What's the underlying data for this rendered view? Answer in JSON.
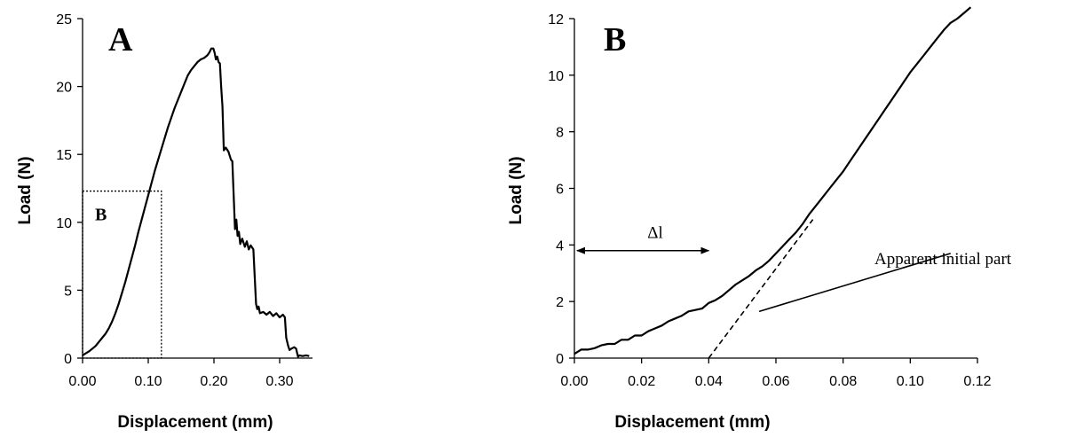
{
  "chart_data": [
    {
      "type": "line",
      "panel_label": "A",
      "xlabel": "Displacement (mm)",
      "ylabel": "Load (N)",
      "xlim": [
        0,
        0.35
      ],
      "ylim": [
        0,
        25
      ],
      "xticks": [
        "0.00",
        "0.10",
        "0.20",
        "0.30"
      ],
      "xtick_values": [
        0,
        0.1,
        0.2,
        0.3
      ],
      "yticks": [
        "0",
        "5",
        "10",
        "15",
        "20",
        "25"
      ],
      "ytick_values": [
        0,
        5,
        10,
        15,
        20,
        25
      ],
      "grid": false,
      "legend": "none",
      "series": [
        {
          "x": [
            0,
            0.005,
            0.01,
            0.015,
            0.02,
            0.025,
            0.03,
            0.035,
            0.04,
            0.045,
            0.05,
            0.055,
            0.06,
            0.065,
            0.07,
            0.075,
            0.08,
            0.085,
            0.09,
            0.095,
            0.1,
            0.105,
            0.11,
            0.115,
            0.12,
            0.125,
            0.13,
            0.135,
            0.14,
            0.145,
            0.15,
            0.155,
            0.16,
            0.165,
            0.17,
            0.175,
            0.18,
            0.185,
            0.19,
            0.193,
            0.196,
            0.199,
            0.201,
            0.203,
            0.205,
            0.207,
            0.209,
            0.211,
            0.213,
            0.215,
            0.218,
            0.222,
            0.226,
            0.228,
            0.23,
            0.232,
            0.234,
            0.236,
            0.238,
            0.24,
            0.243,
            0.247,
            0.25,
            0.253,
            0.256,
            0.26,
            0.262,
            0.264,
            0.266,
            0.268,
            0.27,
            0.275,
            0.28,
            0.285,
            0.29,
            0.295,
            0.3,
            0.305,
            0.308,
            0.31,
            0.313,
            0.315,
            0.318,
            0.322,
            0.325,
            0.328,
            0.33,
            0.335,
            0.34,
            0.345
          ],
          "y": [
            0.2,
            0.35,
            0.5,
            0.7,
            0.9,
            1.2,
            1.5,
            1.8,
            2.2,
            2.7,
            3.3,
            4.0,
            4.8,
            5.6,
            6.5,
            7.4,
            8.3,
            9.3,
            10.2,
            11.1,
            12.0,
            12.9,
            13.8,
            14.6,
            15.4,
            16.2,
            17.0,
            17.7,
            18.4,
            19.0,
            19.6,
            20.2,
            20.8,
            21.2,
            21.5,
            21.8,
            22.0,
            22.1,
            22.3,
            22.5,
            22.8,
            22.8,
            22.5,
            22.0,
            22.2,
            21.8,
            21.7,
            20.0,
            18.5,
            15.3,
            15.5,
            15.2,
            14.6,
            14.5,
            12.0,
            9.5,
            10.2,
            9.0,
            9.3,
            8.4,
            8.8,
            8.2,
            8.6,
            8.0,
            8.3,
            8.0,
            6.0,
            4.0,
            3.6,
            3.8,
            3.3,
            3.4,
            3.2,
            3.4,
            3.1,
            3.3,
            3.0,
            3.2,
            3.0,
            1.5,
            0.9,
            0.6,
            0.7,
            0.8,
            0.7,
            0.1,
            0.2,
            0.15,
            0.2,
            0.15
          ]
        }
      ],
      "inset_box": {
        "label": "B",
        "x": [
          0,
          0.12
        ],
        "y": [
          0,
          12.3
        ]
      }
    },
    {
      "type": "line",
      "panel_label": "B",
      "xlabel": "Displacement (mm)",
      "ylabel": "Load (N)",
      "xlim": [
        0,
        0.12
      ],
      "ylim": [
        0,
        12
      ],
      "xticks": [
        "0.00",
        "0.02",
        "0.04",
        "0.06",
        "0.08",
        "0.10",
        "0.12"
      ],
      "xtick_values": [
        0,
        0.02,
        0.04,
        0.06,
        0.08,
        0.1,
        0.12
      ],
      "yticks": [
        "0",
        "2",
        "4",
        "6",
        "8",
        "10",
        "12"
      ],
      "ytick_values": [
        0,
        2,
        4,
        6,
        8,
        10,
        12
      ],
      "grid": false,
      "legend": "none",
      "series": [
        {
          "x": [
            0,
            0.002,
            0.004,
            0.006,
            0.008,
            0.01,
            0.012,
            0.014,
            0.016,
            0.018,
            0.02,
            0.022,
            0.024,
            0.026,
            0.028,
            0.03,
            0.032,
            0.034,
            0.036,
            0.038,
            0.04,
            0.042,
            0.044,
            0.046,
            0.048,
            0.05,
            0.052,
            0.054,
            0.056,
            0.058,
            0.06,
            0.062,
            0.064,
            0.066,
            0.068,
            0.07,
            0.072,
            0.074,
            0.076,
            0.078,
            0.08,
            0.082,
            0.084,
            0.086,
            0.088,
            0.09,
            0.092,
            0.094,
            0.096,
            0.098,
            0.1,
            0.102,
            0.104,
            0.106,
            0.108,
            0.11,
            0.112,
            0.114,
            0.116,
            0.118
          ],
          "y": [
            0.15,
            0.3,
            0.3,
            0.35,
            0.45,
            0.5,
            0.5,
            0.65,
            0.65,
            0.8,
            0.8,
            0.95,
            1.05,
            1.15,
            1.3,
            1.4,
            1.5,
            1.65,
            1.7,
            1.75,
            1.95,
            2.05,
            2.2,
            2.4,
            2.6,
            2.75,
            2.9,
            3.1,
            3.25,
            3.45,
            3.7,
            3.95,
            4.2,
            4.45,
            4.75,
            5.1,
            5.4,
            5.7,
            6.0,
            6.3,
            6.6,
            6.95,
            7.3,
            7.65,
            8.0,
            8.35,
            8.7,
            9.05,
            9.4,
            9.75,
            10.1,
            10.4,
            10.7,
            11.0,
            11.3,
            11.6,
            11.85,
            12.0,
            12.2,
            12.4
          ]
        }
      ],
      "annotations": {
        "delta_label": "Δl",
        "delta_arrow": {
          "x": [
            0,
            0.04
          ],
          "y": 3.8
        },
        "tangent_line": {
          "x": [
            0.04,
            0.071
          ],
          "y": [
            0,
            4.9
          ],
          "style": "dashed"
        },
        "initial_part_line": {
          "x": [
            0.055,
            0.112
          ],
          "y": [
            1.65,
            3.7
          ],
          "style": "solid"
        },
        "initial_part_label": "Apparent initial part"
      }
    }
  ]
}
